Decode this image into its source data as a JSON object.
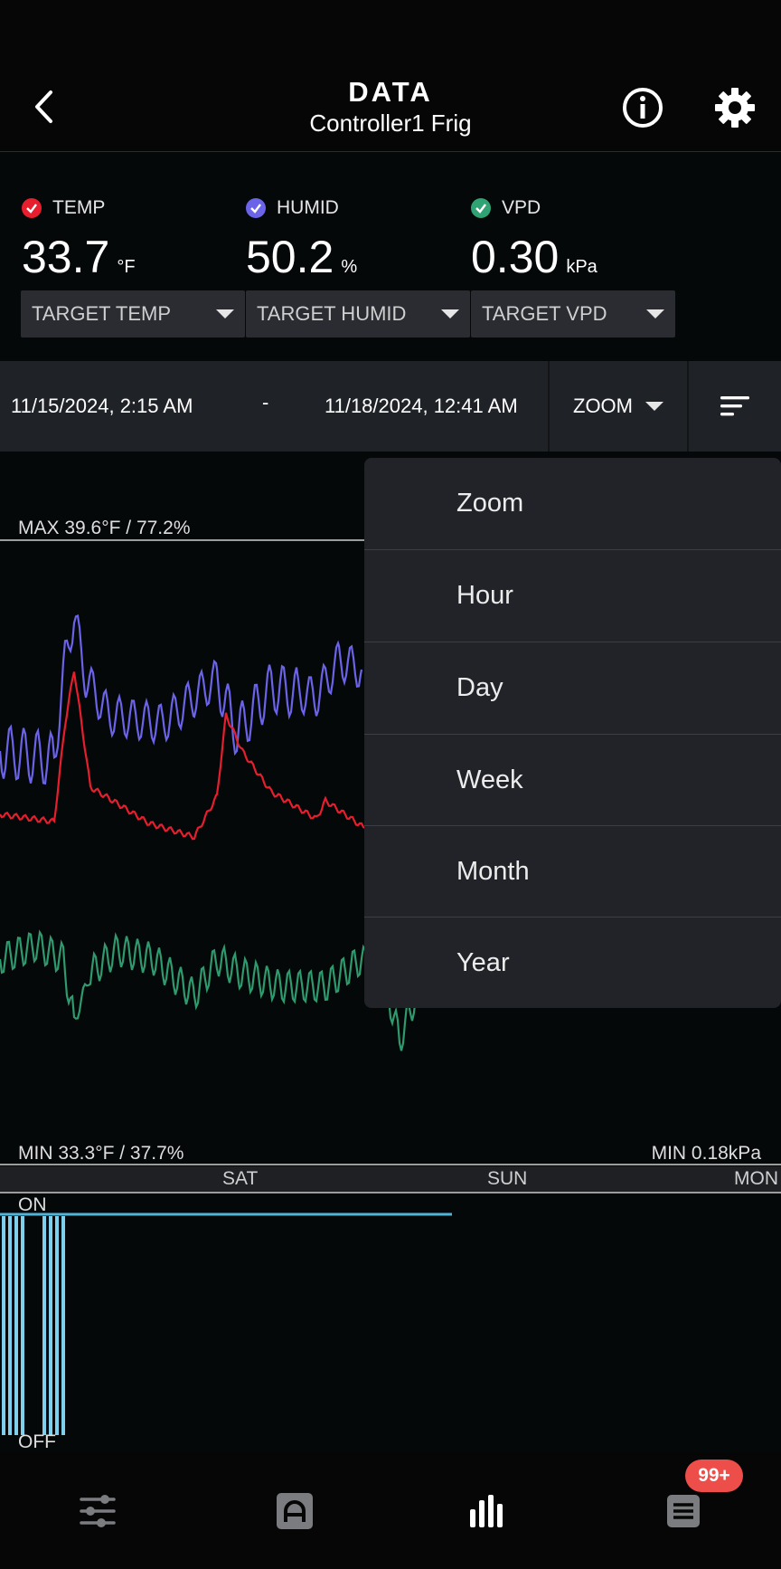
{
  "header": {
    "title": "DATA",
    "subtitle": "Controller1 Frig"
  },
  "readings": [
    {
      "label": "TEMP",
      "value": "33.7",
      "unit": "°F",
      "color": "#e61e2d",
      "target_label": "TARGET TEMP"
    },
    {
      "label": "HUMID",
      "value": "50.2",
      "unit": "%",
      "color": "#6b63e8",
      "target_label": "TARGET HUMID"
    },
    {
      "label": "VPD",
      "value": "0.30",
      "unit": "kPa",
      "color": "#2fa374",
      "target_label": "TARGET VPD"
    }
  ],
  "range": {
    "from": "11/15/2024, 2:15 AM",
    "separator": "-",
    "to": "11/18/2024, 12:41 AM"
  },
  "zoom": {
    "label": "ZOOM",
    "options": [
      "Zoom",
      "Hour",
      "Day",
      "Week",
      "Month",
      "Year"
    ]
  },
  "chart": {
    "max_label": "MAX 39.6°F / 77.2%",
    "min_label": "MIN 33.3°F / 37.7%",
    "min_vpd_label": "MIN 0.18kPa",
    "days": [
      "SAT",
      "SUN",
      "MON"
    ],
    "on_label": "ON",
    "off_label": "OFF",
    "colors": {
      "temp": "#e61e2d",
      "humid": "#6b63e8",
      "vpd": "#2e9a6e",
      "device": "#7fd0ec"
    }
  },
  "nav": {
    "items": [
      "sliders-icon",
      "automation-icon",
      "chart-icon",
      "log-icon"
    ],
    "badge": "99+"
  }
}
